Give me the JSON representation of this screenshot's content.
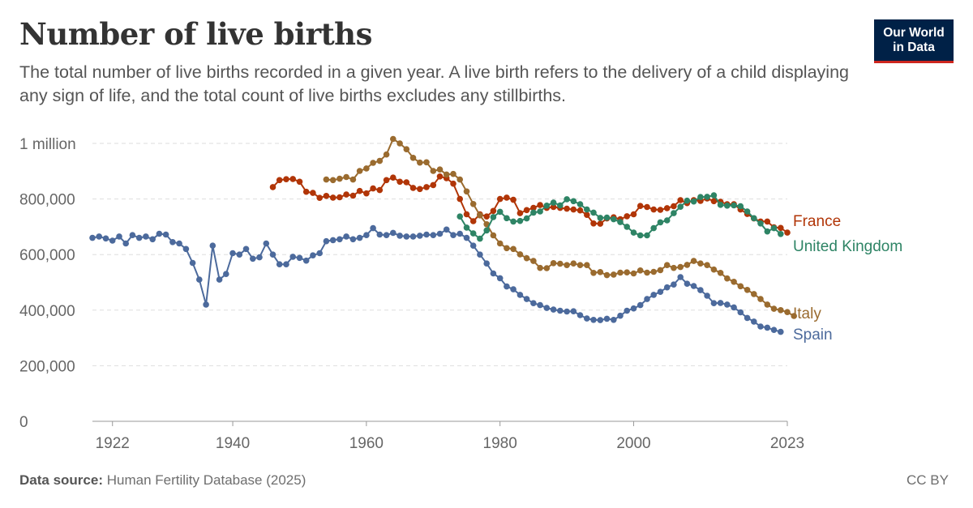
{
  "header": {
    "title": "Number of live births",
    "subtitle": "The total number of live births recorded in a given year. A live birth refers to the delivery of a child displaying any sign of life, and the total count of live births excludes any stillbirths.",
    "logo_line1": "Our World",
    "logo_line2": "in Data"
  },
  "footer": {
    "source_label": "Data source:",
    "source_text": "Human Fertility Database (2025)",
    "license": "CC BY"
  },
  "chart_data": {
    "type": "line",
    "title": "Number of live births",
    "xlabel": "",
    "ylabel": "",
    "xlim": [
      1919,
      2023
    ],
    "ylim": [
      0,
      1000000
    ],
    "x_ticks": [
      1922,
      1940,
      1960,
      1980,
      2000,
      2023
    ],
    "y_ticks": [
      {
        "value": 0,
        "label": "0"
      },
      {
        "value": 200000,
        "label": "200,000"
      },
      {
        "value": 400000,
        "label": "400,000"
      },
      {
        "value": 600000,
        "label": "600,000"
      },
      {
        "value": 800000,
        "label": "800,000"
      },
      {
        "value": 1000000,
        "label": "1 million"
      }
    ],
    "grid": "horizontal-dashed",
    "legend": "inline-right",
    "series": [
      {
        "name": "Spain",
        "color": "#4c6a9c",
        "start": 1919,
        "values": [
          660000,
          665000,
          658000,
          650000,
          665000,
          640000,
          670000,
          660000,
          665000,
          655000,
          675000,
          672000,
          645000,
          640000,
          620000,
          570000,
          510000,
          420000,
          632000,
          510000,
          530000,
          605000,
          600000,
          620000,
          585000,
          590000,
          640000,
          600000,
          565000,
          565000,
          592000,
          588000,
          578000,
          597000,
          605000,
          648000,
          652000,
          655000,
          665000,
          655000,
          660000,
          670000,
          695000,
          672000,
          670000,
          678000,
          668000,
          665000,
          665000,
          668000,
          672000,
          670000,
          675000,
          690000,
          670000,
          675000,
          660000,
          632000,
          600000,
          568000,
          532000,
          515000,
          485000,
          475000,
          455000,
          440000,
          425000,
          418000,
          408000,
          402000,
          398000,
          395000,
          396000,
          382000,
          370000,
          365000,
          364000,
          369000,
          365000,
          380000,
          398000,
          406000,
          418000,
          440000,
          455000,
          466000,
          482000,
          492000,
          519000,
          495000,
          487000,
          472000,
          452000,
          425000,
          426000,
          420000,
          410000,
          392000,
          372000,
          359000,
          341000,
          337000,
          329000,
          322000
        ]
      },
      {
        "name": "France",
        "color": "#b13507",
        "start": 1946,
        "values": [
          843000,
          868000,
          871000,
          872000,
          862000,
          826000,
          822000,
          804000,
          811000,
          805000,
          806000,
          816000,
          812000,
          829000,
          820000,
          838000,
          832000,
          868000,
          877000,
          862000,
          860000,
          840000,
          836000,
          843000,
          850000,
          881000,
          875000,
          855000,
          800000,
          745000,
          720000,
          745000,
          737000,
          757000,
          800000,
          805000,
          797000,
          749000,
          760000,
          768000,
          778000,
          768000,
          771000,
          768000,
          765000,
          762000,
          759000,
          743000,
          712000,
          711000,
          730000,
          734000,
          727000,
          738000,
          745000,
          775000,
          771000,
          762000,
          761000,
          767000,
          774000,
          796000,
          785000,
          796000,
          793000,
          802000,
          792000,
          790000,
          781000,
          781000,
          762000,
          746000,
          730000,
          719000,
          719000,
          698000,
          696000,
          679000
        ]
      },
      {
        "name": "Italy",
        "color": "#9a6b2f",
        "start": 1954,
        "values": [
          870000,
          868000,
          873000,
          879000,
          870000,
          901000,
          910000,
          930000,
          937000,
          960000,
          1016000,
          1000000,
          979000,
          948000,
          931000,
          932000,
          901000,
          906000,
          888000,
          890000,
          870000,
          827000,
          782000,
          741000,
          709000,
          669000,
          640000,
          623000,
          620000,
          601000,
          587000,
          577000,
          552000,
          551000,
          569000,
          567000,
          562000,
          568000,
          562000,
          562000,
          534000,
          537000,
          526000,
          528000,
          535000,
          536000,
          532000,
          543000,
          535000,
          538000,
          544000,
          562000,
          552000,
          555000,
          563000,
          577000,
          568000,
          562000,
          546000,
          534000,
          514000,
          502000,
          486000,
          473000,
          458000,
          440000,
          420000,
          405000,
          400000,
          393000,
          379000
        ]
      },
      {
        "name": "United Kingdom",
        "color": "#2e8465",
        "start": 1974,
        "values": [
          737000,
          697000,
          676000,
          657000,
          687000,
          735000,
          754000,
          731000,
          719000,
          721000,
          730000,
          751000,
          755000,
          776000,
          787000,
          777000,
          799000,
          792000,
          781000,
          762000,
          751000,
          732000,
          733000,
          727000,
          717000,
          700000,
          679000,
          669000,
          669000,
          695000,
          716000,
          723000,
          749000,
          772000,
          794000,
          791000,
          807000,
          808000,
          813000,
          779000,
          776000,
          777000,
          774000,
          755000,
          731000,
          712000,
          683000,
          695000,
          674000
        ]
      }
    ]
  }
}
